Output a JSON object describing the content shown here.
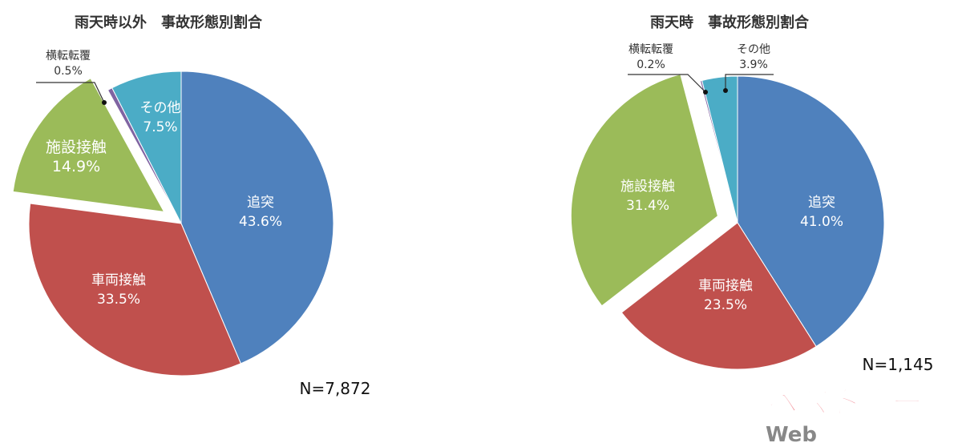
{
  "chart_data": [
    {
      "type": "pie",
      "title": "雨天時以外　事故形態別割合",
      "note": "N=7,872",
      "slices": [
        {
          "label": "追突",
          "value": 43.6,
          "value_label": "43.6%",
          "color": "#4f81bd"
        },
        {
          "label": "車両接触",
          "value": 33.5,
          "value_label": "33.5%",
          "color": "#c0504d"
        },
        {
          "label": "施設接触",
          "value": 14.9,
          "value_label": "14.9%",
          "color": "#9bbb59",
          "exploded": true
        },
        {
          "label": "横転転覆",
          "value": 0.5,
          "value_label": "0.5%",
          "color": "#8064a2"
        },
        {
          "label": "その他",
          "value": 7.5,
          "value_label": "7.5%",
          "color": "#4bacc6"
        }
      ]
    },
    {
      "type": "pie",
      "title": "雨天時　事故形態別割合",
      "note": "N=1,145",
      "slices": [
        {
          "label": "追突",
          "value": 41.0,
          "value_label": "41.0%",
          "color": "#4f81bd"
        },
        {
          "label": "車両接触",
          "value": 23.5,
          "value_label": "23.5%",
          "color": "#c0504d"
        },
        {
          "label": "施設接触",
          "value": 31.4,
          "value_label": "31.4%",
          "color": "#9bbb59",
          "exploded": true
        },
        {
          "label": "横転転覆",
          "value": 0.2,
          "value_label": "0.2%",
          "color": "#8064a2"
        },
        {
          "label": "その他",
          "value": 3.9,
          "value_label": "3.9%",
          "color": "#4bacc6"
        }
      ]
    }
  ],
  "watermark": {
    "text": "ベストカーWeb",
    "color": "#f4a0a8"
  }
}
